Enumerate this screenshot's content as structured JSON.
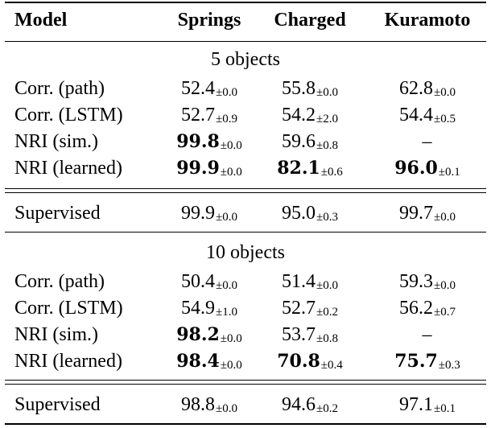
{
  "header": {
    "model": "Model",
    "springs": "Springs",
    "charged": "Charged",
    "kuramoto": "Kuramoto"
  },
  "section5": {
    "title": "5 objects",
    "rows": [
      {
        "model": "Corr. (path)",
        "springs": {
          "v": "52.4",
          "s": "±0.0",
          "best": false
        },
        "charged": {
          "v": "55.8",
          "s": "±0.0",
          "best": false
        },
        "kuramoto": {
          "v": "62.8",
          "s": "±0.0",
          "best": false
        }
      },
      {
        "model": "Corr. (LSTM)",
        "springs": {
          "v": "52.7",
          "s": "±0.9",
          "best": false
        },
        "charged": {
          "v": "54.2",
          "s": "±2.0",
          "best": false
        },
        "kuramoto": {
          "v": "54.4",
          "s": "±0.5",
          "best": false
        }
      },
      {
        "model": "NRI (sim.)",
        "springs": {
          "v": "99.8",
          "s": "±0.0",
          "best": true
        },
        "charged": {
          "v": "59.6",
          "s": "±0.8",
          "best": false
        },
        "kuramoto": {
          "v": "–",
          "s": "",
          "best": false
        }
      },
      {
        "model": "NRI (learned)",
        "springs": {
          "v": "99.9",
          "s": "±0.0",
          "best": true
        },
        "charged": {
          "v": "82.1",
          "s": "±0.6",
          "best": true
        },
        "kuramoto": {
          "v": "96.0",
          "s": "±0.1",
          "best": true
        }
      }
    ],
    "supervised": {
      "model": "Supervised",
      "springs": {
        "v": "99.9",
        "s": "±0.0"
      },
      "charged": {
        "v": "95.0",
        "s": "±0.3"
      },
      "kuramoto": {
        "v": "99.7",
        "s": "±0.0"
      }
    }
  },
  "section10": {
    "title": "10 objects",
    "rows": [
      {
        "model": "Corr. (path)",
        "springs": {
          "v": "50.4",
          "s": "±0.0",
          "best": false
        },
        "charged": {
          "v": "51.4",
          "s": "±0.0",
          "best": false
        },
        "kuramoto": {
          "v": "59.3",
          "s": "±0.0",
          "best": false
        }
      },
      {
        "model": "Corr. (LSTM)",
        "springs": {
          "v": "54.9",
          "s": "±1.0",
          "best": false
        },
        "charged": {
          "v": "52.7",
          "s": "±0.2",
          "best": false
        },
        "kuramoto": {
          "v": "56.2",
          "s": "±0.7",
          "best": false
        }
      },
      {
        "model": "NRI (sim.)",
        "springs": {
          "v": "98.2",
          "s": "±0.0",
          "best": true
        },
        "charged": {
          "v": "53.7",
          "s": "±0.8",
          "best": false
        },
        "kuramoto": {
          "v": "–",
          "s": "",
          "best": false
        }
      },
      {
        "model": "NRI (learned)",
        "springs": {
          "v": "98.4",
          "s": "±0.0",
          "best": true
        },
        "charged": {
          "v": "70.8",
          "s": "±0.4",
          "best": true
        },
        "kuramoto": {
          "v": "75.7",
          "s": "±0.3",
          "best": true
        }
      }
    ],
    "supervised": {
      "model": "Supervised",
      "springs": {
        "v": "98.8",
        "s": "±0.0"
      },
      "charged": {
        "v": "94.6",
        "s": "±0.2"
      },
      "kuramoto": {
        "v": "97.1",
        "s": "±0.1"
      }
    }
  }
}
